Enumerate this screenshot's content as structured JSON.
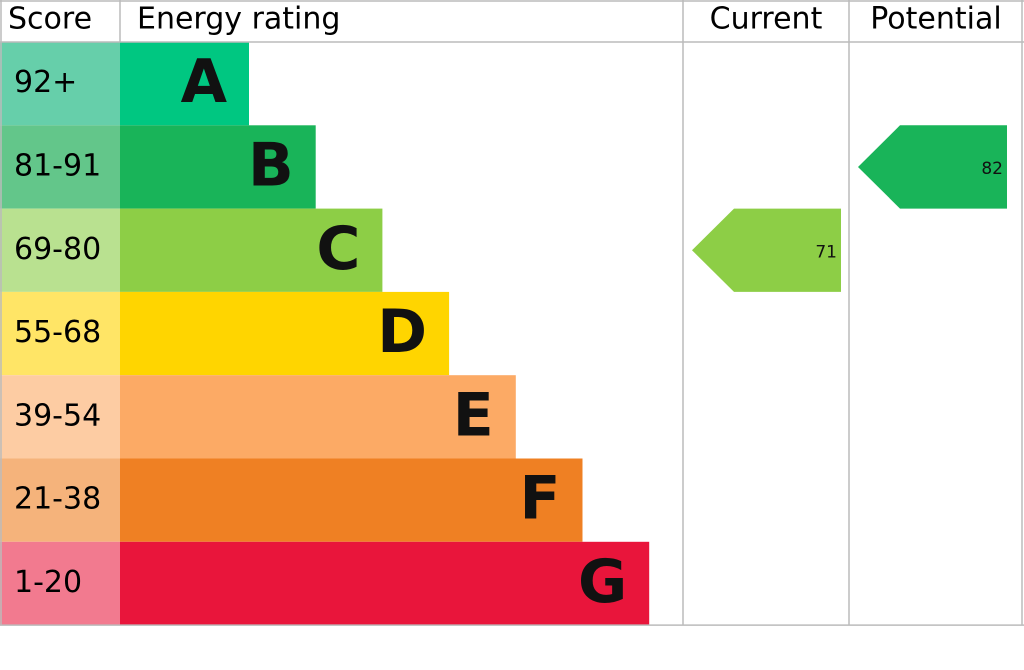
{
  "header": {
    "score": "Score",
    "rating": "Energy rating",
    "current": "Current",
    "potential": "Potential"
  },
  "bands": [
    {
      "score": "92+",
      "letter": "A",
      "color": "#00c781",
      "score_color": "#66cfaa"
    },
    {
      "score": "81-91",
      "letter": "B",
      "color": "#19b459",
      "score_color": "#63c68a"
    },
    {
      "score": "69-80",
      "letter": "C",
      "color": "#8dce46",
      "score_color": "#b9e190"
    },
    {
      "score": "55-68",
      "letter": "D",
      "color": "#ffd500",
      "score_color": "#ffe566"
    },
    {
      "score": "39-54",
      "letter": "E",
      "color": "#fcaa65",
      "score_color": "#fdcca3"
    },
    {
      "score": "21-38",
      "letter": "F",
      "color": "#ef8023",
      "score_color": "#f5b37b"
    },
    {
      "score": "1-20",
      "letter": "G",
      "color": "#e9153b",
      "score_color": "#f27a8f"
    }
  ],
  "current": {
    "value": 71
  },
  "potential": {
    "value": 82
  }
}
